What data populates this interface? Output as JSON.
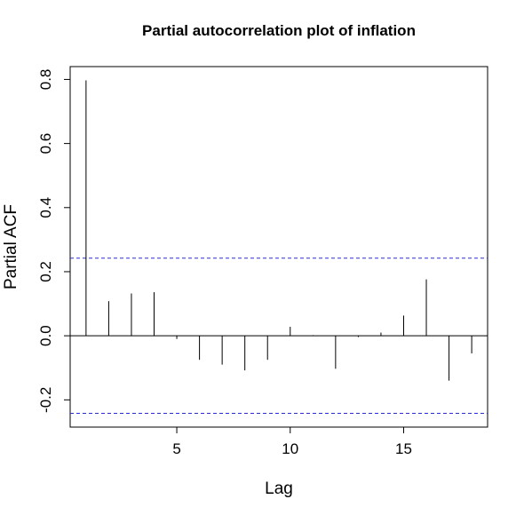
{
  "chart_data": {
    "type": "bar",
    "title": "Partial autocorrelation plot of inflation",
    "xlabel": "Lag",
    "ylabel": "Partial ACF",
    "x": [
      1,
      2,
      3,
      4,
      5,
      6,
      7,
      8,
      9,
      10,
      11,
      12,
      13,
      14,
      15,
      16,
      17,
      18
    ],
    "values": [
      0.797,
      0.108,
      0.132,
      0.136,
      -0.01,
      -0.075,
      -0.09,
      -0.108,
      -0.075,
      0.028,
      0.002,
      -0.103,
      -0.004,
      0.01,
      0.063,
      0.176,
      -0.14,
      -0.055
    ],
    "confidence_bounds": [
      0.242,
      -0.242
    ],
    "xlim": [
      0.3,
      18.7
    ],
    "ylim": [
      -0.285,
      0.84
    ],
    "xticks": [
      5,
      10,
      15
    ],
    "xtick_labels": [
      "5",
      "10",
      "15"
    ],
    "yticks": [
      -0.2,
      0.0,
      0.2,
      0.4,
      0.6,
      0.8
    ],
    "ytick_labels": [
      "-0.2",
      "0.0",
      "0.2",
      "0.4",
      "0.6",
      "0.8"
    ],
    "grid": false,
    "colors": {
      "bars": "#000000",
      "confidence_lines": "#2b2bd9",
      "zero_line": "#000000",
      "frame": "#000000"
    }
  }
}
